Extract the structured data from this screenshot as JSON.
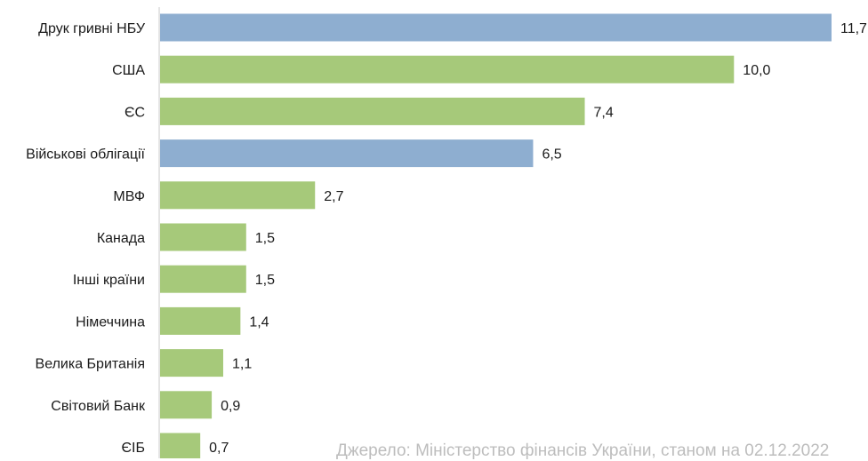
{
  "chart_data": {
    "type": "bar",
    "orientation": "horizontal",
    "categories": [
      "Друк гривні НБУ",
      "США",
      "ЄС",
      "Військові облігації",
      "МВФ",
      "Канада",
      "Інші країни",
      "Німеччина",
      "Велика Британія",
      "Світовий Банк",
      "ЄІБ"
    ],
    "values": [
      11.7,
      10.0,
      7.4,
      6.5,
      2.7,
      1.5,
      1.5,
      1.4,
      1.1,
      0.9,
      0.7
    ],
    "value_labels": [
      "11,7",
      "10,0",
      "7,4",
      "6,5",
      "2,7",
      "1,5",
      "1,5",
      "1,4",
      "1,1",
      "0,9",
      "0,7"
    ],
    "domestic": [
      true,
      false,
      false,
      true,
      false,
      false,
      false,
      false,
      false,
      false,
      false
    ],
    "colors": {
      "domestic": "#8eaed0",
      "external": "#a6c97a",
      "axis": "#c8c8c8"
    },
    "xlim": [
      0,
      11.7
    ],
    "grid": false,
    "legend": "none"
  },
  "source_note": "Джерело: Міністерство фінансів України, станом на 02.12.2022"
}
